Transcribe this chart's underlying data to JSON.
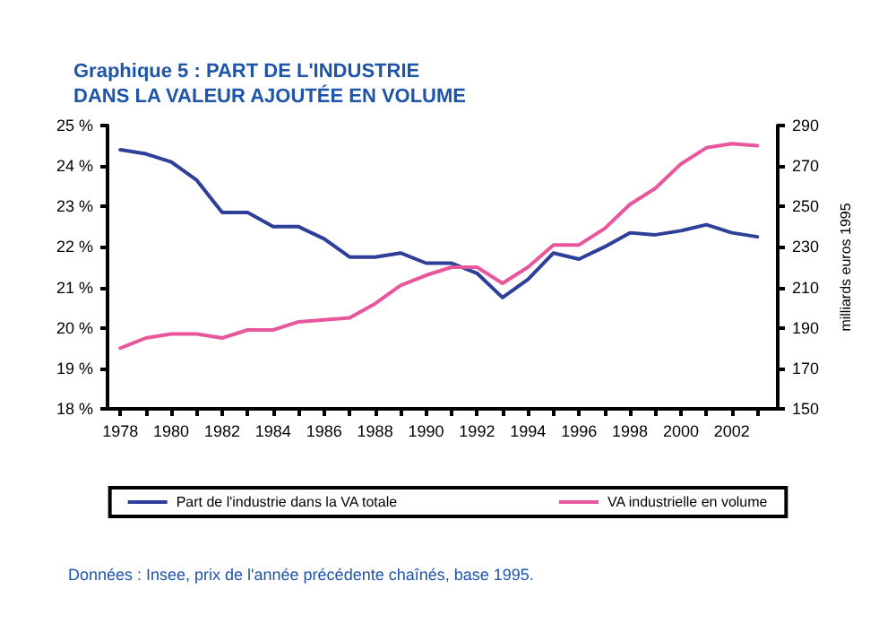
{
  "chart_data": {
    "type": "line",
    "title": "Graphique 5 : PART DE L'INDUSTRIE\nDANS LA VALEUR AJOUTÉE EN VOLUME",
    "y2label": "milliards euros 1995",
    "annotations": [
      "Données : Insee, prix de l'année précédente chaînés, base 1995."
    ],
    "x": [
      1978,
      1979,
      1980,
      1981,
      1982,
      1983,
      1984,
      1985,
      1986,
      1987,
      1988,
      1989,
      1990,
      1991,
      1992,
      1993,
      1994,
      1995,
      1996,
      1997,
      1998,
      1999,
      2000,
      2001,
      2002,
      2003
    ],
    "series": [
      {
        "name": "Part de l'industrie dans la VA totale",
        "color": "#2e3f99",
        "values": [
          24.4,
          24.3,
          24.1,
          23.65,
          22.85,
          22.85,
          22.5,
          22.5,
          22.2,
          21.75,
          21.75,
          21.85,
          21.6,
          21.6,
          21.35,
          20.75,
          21.2,
          21.85,
          21.7,
          22,
          22.35,
          22.3,
          22.4,
          22.55,
          22.35,
          22.25
        ]
      },
      {
        "name": "VA industrielle en volume",
        "color": "#e8579b",
        "axis": "y2",
        "values": [
          180,
          185,
          187,
          187,
          185,
          189,
          189,
          193,
          194,
          195,
          202,
          211,
          216,
          220,
          220,
          212,
          220,
          231,
          231,
          239,
          251,
          259,
          271,
          279,
          281,
          280
        ]
      }
    ],
    "xlim": [
      1977.5,
      2003.8
    ],
    "xticks": [
      1978,
      {
        "value": 1979,
        "label": null
      },
      1980,
      {
        "value": 1981,
        "label": null
      },
      1982,
      {
        "value": 1983,
        "label": null
      },
      1984,
      {
        "value": 1985,
        "label": null
      },
      1986,
      {
        "value": 1987,
        "label": null
      },
      1988,
      {
        "value": 1989,
        "label": null
      },
      1990,
      {
        "value": 1991,
        "label": null
      },
      1992,
      {
        "value": 1993,
        "label": null
      },
      1994,
      {
        "value": 1995,
        "label": null
      },
      1996,
      {
        "value": 1997,
        "label": null
      },
      1998,
      {
        "value": 1999,
        "label": null
      },
      2000,
      {
        "value": 2001,
        "label": null
      },
      2002,
      {
        "value": 2003,
        "label": null
      }
    ],
    "ylim": [
      18,
      25
    ],
    "yticks": [
      {
        "value": 18,
        "label": "18 %"
      },
      {
        "value": 19,
        "label": "19 %"
      },
      {
        "value": 20,
        "label": "20 %"
      },
      {
        "value": 21,
        "label": "21 %"
      },
      {
        "value": 22,
        "label": "22 %"
      },
      {
        "value": 23,
        "label": "23 %"
      },
      {
        "value": 24,
        "label": "24 %"
      },
      {
        "value": 25,
        "label": "25 %"
      }
    ],
    "y2lim": [
      150,
      290
    ],
    "y2ticks": [
      150,
      170,
      190,
      210,
      230,
      250,
      270,
      290
    ],
    "grid": false,
    "legend": "bottom",
    "marker": "none",
    "line_style": "solid"
  }
}
